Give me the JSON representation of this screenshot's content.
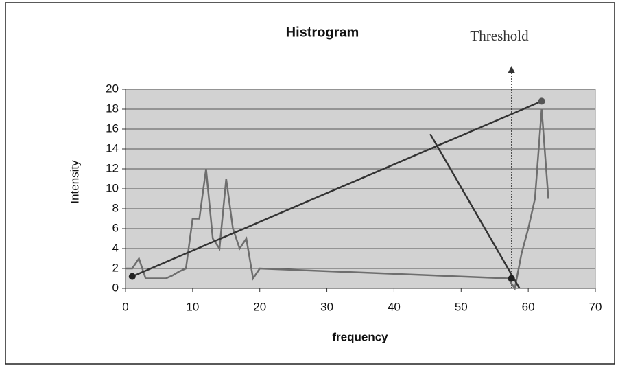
{
  "chart_data": {
    "type": "line",
    "title": "Histrogram",
    "annotation": "Threshold",
    "x_label": "frequency",
    "y_label": "Intensity",
    "xlim": [
      0,
      70
    ],
    "xticks": [
      0,
      10,
      20,
      30,
      40,
      50,
      60,
      70
    ],
    "ylim": [
      0,
      20
    ],
    "yticks": [
      0,
      2,
      4,
      6,
      8,
      10,
      12,
      14,
      16,
      18,
      20
    ],
    "grid": true,
    "threshold_x": 57.5,
    "series": [
      {
        "style": "line",
        "color": "#6e6e6e",
        "x": [
          0,
          1,
          2,
          3,
          4,
          5,
          6,
          7,
          8,
          9,
          10,
          11,
          12,
          13,
          14,
          15,
          16,
          17,
          18,
          19,
          20,
          57,
          58,
          59,
          60,
          61,
          62,
          63
        ],
        "values": [
          2,
          2,
          3,
          1,
          1,
          1,
          1,
          1.3,
          1.7,
          2,
          7,
          7,
          12,
          5,
          4,
          11,
          6,
          4,
          5,
          1,
          2,
          1,
          0,
          3.5,
          6,
          9,
          18,
          9
        ]
      },
      {
        "style": "line",
        "color": "#333333",
        "x": [
          45.4,
          58.7
        ],
        "values": [
          15.5,
          0
        ]
      },
      {
        "style": "line",
        "color": "#333333",
        "x": [
          1,
          62
        ],
        "values": [
          1.2,
          18.8
        ]
      },
      {
        "style": "markers",
        "color": "#222222",
        "x": [
          1,
          57.5
        ],
        "values": [
          1.2,
          1
        ]
      },
      {
        "style": "markers",
        "color": "#555555",
        "x": [
          62
        ],
        "values": [
          18.8
        ]
      }
    ]
  }
}
